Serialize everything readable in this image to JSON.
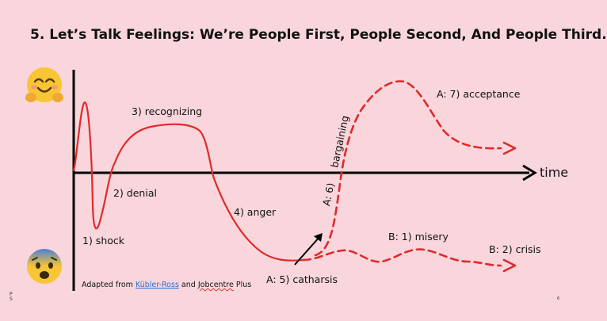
{
  "slide": {
    "title": "5. Let’s Talk Feelings: We’re People First, People Second, And People Third.",
    "axis": {
      "time_label": "time"
    },
    "stages": {
      "shock": "1) shock",
      "denial": "2) denial",
      "recognizing": "3) recognizing",
      "anger": "4) anger",
      "catharsis": "A: 5) catharsis",
      "bargaining_prefix": "A: 6)",
      "bargaining": "bargaining",
      "acceptance": "A: 7) acceptance",
      "misery": "B: 1) misery",
      "crisis": "B: 2) crisis"
    },
    "credit": {
      "prefix": "Adapted from",
      "link1": "Kübler-Ross",
      "middle": "and",
      "link2": "Jobcentre",
      "suffix": "Plus"
    },
    "corner_mark": "P\nS",
    "page_number": "6",
    "emojis": {
      "top": "smiling-hugging-face-icon",
      "bottom": "anxious-face-icon"
    },
    "colors": {
      "background": "#f9d6dc",
      "curve": "#e02a2a",
      "axis": "#000000",
      "link": "#2a6fd6"
    }
  }
}
